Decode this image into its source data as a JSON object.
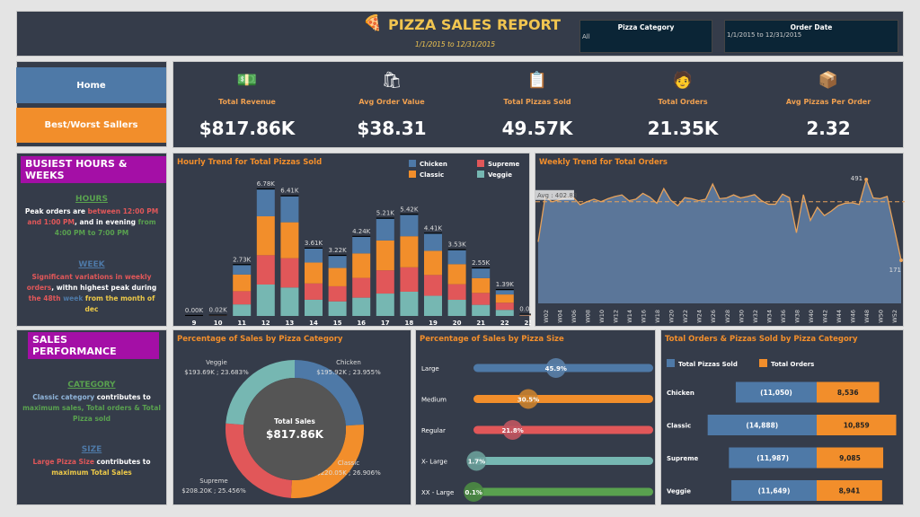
{
  "header": {
    "title": "PIZZA SALES REPORT",
    "date_range": "1/1/2015 to  12/31/2015",
    "logo_icon": "pizza-slice-icon",
    "filters": [
      {
        "label": "Pizza Category",
        "value": "All"
      },
      {
        "label": "Order Date",
        "value": "1/1/2015 to 12/31/2015"
      }
    ]
  },
  "nav": {
    "home": "Home",
    "best_worst": "Best/Worst Sallers"
  },
  "kpis": [
    {
      "label": "Total Revenue",
      "value": "$817.86K",
      "icon": "money-icon"
    },
    {
      "label": "Avg Order Value",
      "value": "$38.31",
      "icon": "hand-box-icon"
    },
    {
      "label": "Total Pizzas Sold",
      "value": "49.57K",
      "icon": "menu-list-icon"
    },
    {
      "label": "Total Orders",
      "value": "21.35K",
      "icon": "delivery-person-icon"
    },
    {
      "label": "Avg Pizzas Per Order",
      "value": "2.32",
      "icon": "box-badge-icon"
    }
  ],
  "busiest": {
    "title": "BUSIEST HOURS & WEEKS",
    "hours_heading": "HOURS",
    "hours_parts": [
      "Peak orders are ",
      "between 12:00 PM and 1:00 PM",
      ", and in evening ",
      "from 4:00 PM to 7:00 PM"
    ],
    "week_heading": "WEEK",
    "week_parts": [
      "Significant variations in weekly orders",
      ", withn highest peak during ",
      "the 48th",
      " week",
      " from the month of dec"
    ]
  },
  "sales_perf": {
    "title": "SALES PERFORMANCE",
    "category_heading": "CATEGORY",
    "category_parts": [
      "Classic category",
      " contributes to ",
      "maximum sales, Total orders & Total Pizza sold"
    ],
    "size_heading": "SIZE",
    "size_parts": [
      "Large Pizza Size",
      " contributes to ",
      "maximum Total Sales"
    ]
  },
  "colors": {
    "Chicken": "#4e79a7",
    "Classic": "#f28e2b",
    "Supreme": "#e15759",
    "Veggie": "#76b7b2",
    "XXL": "#59a14f",
    "accent": "#f28e2b",
    "panel": "#353c4a"
  },
  "chart_data": [
    {
      "type": "bar",
      "stacked": true,
      "title": "Hourly Trend for Total Pizzas Sold",
      "legend": "top-right",
      "categories": [
        "9",
        "10",
        "11",
        "12",
        "13",
        "14",
        "15",
        "16",
        "17",
        "18",
        "19",
        "20",
        "21",
        "22",
        "23"
      ],
      "totals_labels": [
        "0.00K",
        "0.02K",
        "2.73K",
        "6.78K",
        "6.41K",
        "3.61K",
        "3.22K",
        "4.24K",
        "5.21K",
        "5.42K",
        "4.41K",
        "3.53K",
        "2.55K",
        "1.39K",
        "0.07K"
      ],
      "series": [
        {
          "name": "Chicken",
          "values": [
            1,
            5,
            510,
            1443,
            1395,
            750,
            650,
            890,
            1165,
            1150,
            920,
            755,
            525,
            240,
            15
          ]
        },
        {
          "name": "Classic",
          "values": [
            1,
            6,
            890,
            2084,
            1924,
            1120,
            980,
            1310,
            1600,
            1665,
            1295,
            1075,
            790,
            440,
            20
          ]
        },
        {
          "name": "Supreme",
          "values": [
            1,
            5,
            710,
            1571,
            1571,
            870,
            810,
            1060,
            1245,
            1305,
            1115,
            835,
            640,
            385,
            18
          ]
        },
        {
          "name": "Veggie",
          "values": [
            1,
            4,
            618,
            1683,
            1523,
            870,
            780,
            980,
            1200,
            1300,
            1080,
            865,
            595,
            325,
            17
          ]
        }
      ],
      "legend_order": [
        "Chicken",
        "Supreme",
        "Classic",
        "Veggie"
      ]
    },
    {
      "type": "area",
      "title": "Weekly Trend for Total Orders",
      "avg_label": "Avg : 402.83",
      "avg": 402.83,
      "x_tick_labels": [
        "W02",
        "W04",
        "W06",
        "W08",
        "W10",
        "W12",
        "W14",
        "W16",
        "W18",
        "W20",
        "W22",
        "W24",
        "W26",
        "W28",
        "W30",
        "W32",
        "W34",
        "W36",
        "W38",
        "W40",
        "W42",
        "W44",
        "W46",
        "W48",
        "W50",
        "W52"
      ],
      "values": [
        244,
        421,
        403,
        410,
        421,
        421,
        391,
        403,
        413,
        403,
        415,
        424,
        430,
        407,
        413,
        436,
        421,
        397,
        455,
        409,
        387,
        419,
        415,
        407,
        413,
        473,
        415,
        418,
        430,
        418,
        424,
        431,
        407,
        393,
        393,
        433,
        419,
        280,
        431,
        329,
        381,
        348,
        366,
        388,
        397,
        399,
        392,
        491,
        418,
        415,
        424,
        300,
        171
      ],
      "point_labels": [
        {
          "week": 48,
          "text": "491"
        },
        {
          "week": 53,
          "text": "171"
        }
      ]
    },
    {
      "type": "pie",
      "donut": true,
      "title": "Percentage of Sales by Pizza Category",
      "center_label": "Total Sales",
      "center_value": "$817.86K",
      "slices": [
        {
          "name": "Chicken",
          "value": 195.92,
          "pct": 23.955,
          "label": "$195.92K ; 23.955%"
        },
        {
          "name": "Classic",
          "value": 220.05,
          "pct": 26.906,
          "label": "$220.05K ; 26.906%"
        },
        {
          "name": "Supreme",
          "value": 208.2,
          "pct": 25.456,
          "label": "$208.20K ; 25.456%"
        },
        {
          "name": "Veggie",
          "value": 193.69,
          "pct": 23.683,
          "label": "$193.69K ; 23.683%"
        }
      ]
    },
    {
      "type": "bar",
      "title": "Percentage of Sales by Pizza Size",
      "categories": [
        "Large",
        "Medium",
        "Regular",
        "X- Large",
        "XX - Large"
      ],
      "values": [
        45.9,
        30.5,
        21.8,
        1.7,
        0.1
      ],
      "labels": [
        "45.9%",
        "30.5%",
        "21.8%",
        "1.7%",
        "0.1%"
      ]
    },
    {
      "type": "bar",
      "title": "Total Orders &  Pizzas Sold by Pizza Category",
      "legend": "top-left",
      "categories": [
        "Chicken",
        "Classic",
        "Supreme",
        "Veggie"
      ],
      "series": [
        {
          "name": "Total Pizzas Sold",
          "values": [
            11050,
            14888,
            11987,
            11649
          ],
          "labels": [
            "(11,050)",
            "(14,888)",
            "(11,987)",
            "(11,649)"
          ]
        },
        {
          "name": "Total Orders",
          "values": [
            8536,
            10859,
            9085,
            8941
          ],
          "labels": [
            "8,536",
            "10,859",
            "9,085",
            "8,941"
          ]
        }
      ]
    }
  ]
}
